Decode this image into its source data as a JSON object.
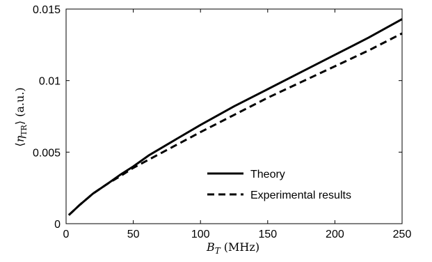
{
  "chart_data": {
    "type": "line",
    "title": "",
    "xlabel": "B_T (MHz)",
    "ylabel": "⟨η_TR⟩ (a.u.)",
    "xlim": [
      0,
      250
    ],
    "ylim": [
      0,
      0.015
    ],
    "x_ticks": [
      0,
      50,
      100,
      150,
      200,
      250
    ],
    "x_tick_labels": [
      "0",
      "50",
      "100",
      "150",
      "200",
      "250"
    ],
    "y_ticks": [
      0,
      0.005,
      0.01,
      0.015
    ],
    "y_tick_labels": [
      "0",
      "0.005",
      "0.01",
      "0.015"
    ],
    "grid": false,
    "legend_position": "lower-right",
    "series": [
      {
        "name": "Theory",
        "line_style": "solid",
        "color": "#000000",
        "x": [
          2,
          10,
          20,
          31,
          40,
          50,
          62,
          80,
          100,
          125,
          150,
          175,
          200,
          225,
          250
        ],
        "y": [
          0.0006,
          0.0013,
          0.0021,
          0.0028,
          0.0034,
          0.004,
          0.0048,
          0.0058,
          0.0069,
          0.0082,
          0.0094,
          0.0106,
          0.0118,
          0.013,
          0.0143
        ]
      },
      {
        "name": "Experimental results",
        "line_style": "dashed",
        "color": "#000000",
        "x": [
          2,
          10,
          20,
          31,
          40,
          50,
          62,
          80,
          100,
          125,
          150,
          175,
          200,
          225,
          250
        ],
        "y": [
          0.0006,
          0.0013,
          0.0021,
          0.0028,
          0.0033,
          0.0039,
          0.0045,
          0.0054,
          0.0064,
          0.0076,
          0.0088,
          0.0099,
          0.011,
          0.0121,
          0.0133
        ]
      }
    ]
  }
}
